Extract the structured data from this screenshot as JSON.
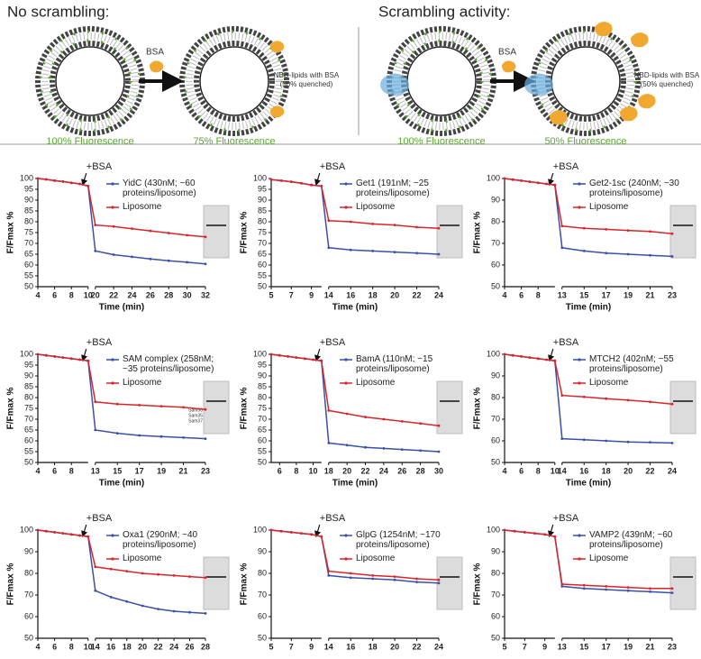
{
  "diagram": {
    "left_title": "No scrambling:",
    "right_title": "Scrambling activity:",
    "left": {
      "bsa": "BSA",
      "nbd_label": [
        "NBD-lipids with BSA",
        "(50% quenched)"
      ],
      "before_label": "100% Fluorescence",
      "after_label": "75% Fluorescence"
    },
    "right": {
      "bsa": "BSA",
      "nbd_label": [
        "NBD-lipids with BSA",
        "(50% quenched)"
      ],
      "before_label": "100% Fluorescence",
      "after_label": "50% Fluorescence"
    }
  },
  "chart_data": [
    {
      "type": "line",
      "annotation": "+BSA",
      "x_label": "Time (min)",
      "y_label": "F/Fmax %",
      "xlim": [
        [
          4,
          10
        ],
        [
          20,
          32
        ]
      ],
      "ylim": [
        50,
        100
      ],
      "xticks": [
        4,
        6,
        8,
        10,
        20,
        22,
        24,
        26,
        28,
        30,
        32
      ],
      "yticks": [
        50,
        55,
        60,
        65,
        70,
        75,
        80,
        85,
        90,
        95,
        100
      ],
      "x": [
        4,
        5,
        6,
        7,
        8,
        9,
        10,
        20,
        22,
        24,
        26,
        28,
        30,
        32
      ],
      "series": [
        {
          "name": "YidC (430nM; ~60 proteins/liposome)",
          "color": "#3b4fa8",
          "values": [
            100,
            99.6,
            99,
            98.6,
            98,
            97.5,
            96.5,
            66.5,
            64.8,
            63.8,
            62.8,
            62,
            61.3,
            60.5
          ]
        },
        {
          "name": "Liposome",
          "color": "#d7262b",
          "values": [
            100,
            99.6,
            99,
            98.6,
            98,
            97.5,
            96.5,
            78.5,
            77.8,
            76.8,
            75.8,
            74.8,
            73.8,
            73
          ]
        }
      ]
    },
    {
      "type": "line",
      "annotation": "+BSA",
      "x_label": "Time (min)",
      "y_label": "F/Fmax %",
      "xlim": [
        [
          5,
          10
        ],
        [
          14,
          24
        ]
      ],
      "ylim": [
        50,
        100
      ],
      "xticks": [
        5,
        7,
        9,
        14,
        16,
        18,
        20,
        22,
        24
      ],
      "yticks": [
        50,
        55,
        60,
        65,
        70,
        75,
        80,
        85,
        90,
        95,
        100
      ],
      "x": [
        5,
        6,
        7,
        8,
        9,
        10,
        14,
        16,
        18,
        20,
        22,
        24
      ],
      "series": [
        {
          "name": "Get1 (191nM; ~25 proteins/liposome)",
          "color": "#3b4fa8",
          "values": [
            99.5,
            99,
            98.5,
            97.8,
            97,
            96.5,
            68,
            67,
            66.5,
            66,
            65.5,
            65
          ]
        },
        {
          "name": "Liposome",
          "color": "#d7262b",
          "values": [
            99.5,
            99,
            98.5,
            97.8,
            97,
            96.5,
            80.5,
            80,
            79,
            78.5,
            77.5,
            77
          ]
        }
      ]
    },
    {
      "type": "line",
      "annotation": "+BSA",
      "x_label": "Time (min)",
      "y_label": "F/Fmax %",
      "xlim": [
        [
          4,
          10
        ],
        [
          13,
          23
        ]
      ],
      "ylim": [
        50,
        100
      ],
      "xticks": [
        4,
        6,
        8,
        13,
        15,
        17,
        19,
        21,
        23
      ],
      "yticks": [
        50,
        60,
        70,
        80,
        90,
        100
      ],
      "x": [
        4,
        5,
        6,
        7,
        8,
        9,
        10,
        13,
        15,
        17,
        19,
        21,
        23
      ],
      "series": [
        {
          "name": "Get2-1sc (240nM; ~30 proteins/liposome)",
          "color": "#3b4fa8",
          "values": [
            100,
            99.5,
            99,
            98.5,
            98,
            97.5,
            97,
            68,
            66.5,
            65.5,
            65,
            64.5,
            64
          ]
        },
        {
          "name": "Liposome",
          "color": "#d7262b",
          "values": [
            100,
            99.5,
            99,
            98.5,
            98,
            97.5,
            97,
            78,
            77,
            76.5,
            76,
            75.5,
            74.5
          ]
        }
      ]
    },
    {
      "type": "line",
      "annotation": "+BSA",
      "x_label": "Time (min)",
      "y_label": "F/Fmax %",
      "gel_labels": [
        "Sam50",
        "Sam35",
        "Sam37"
      ],
      "xlim": [
        [
          4,
          10
        ],
        [
          13,
          23
        ]
      ],
      "ylim": [
        50,
        100
      ],
      "xticks": [
        4,
        6,
        8,
        13,
        15,
        17,
        19,
        21,
        23
      ],
      "yticks": [
        50,
        55,
        60,
        65,
        70,
        75,
        80,
        85,
        90,
        95,
        100
      ],
      "x": [
        4,
        5,
        6,
        7,
        8,
        9,
        10,
        13,
        15,
        17,
        19,
        21,
        23
      ],
      "series": [
        {
          "name": "SAM complex (258nM; ~35 proteins/liposome)",
          "color": "#3b4fa8",
          "values": [
            100,
            99.5,
            99,
            98.5,
            98,
            97.5,
            97,
            65,
            63.5,
            62.5,
            62,
            61.5,
            61
          ]
        },
        {
          "name": "Liposome",
          "color": "#d7262b",
          "values": [
            100,
            99.5,
            99,
            98.5,
            98,
            97.5,
            97,
            78,
            77,
            76.5,
            76,
            75.5,
            74.5
          ]
        }
      ]
    },
    {
      "type": "line",
      "annotation": "+BSA",
      "x_label": "Time (min)",
      "y_label": "F/Fmax %",
      "xlim": [
        [
          5,
          11
        ],
        [
          18,
          30
        ]
      ],
      "ylim": [
        50,
        100
      ],
      "xticks": [
        6,
        8,
        10,
        18,
        20,
        22,
        24,
        26,
        28,
        30
      ],
      "yticks": [
        50,
        55,
        60,
        65,
        70,
        75,
        80,
        85,
        90,
        95,
        100
      ],
      "x": [
        5,
        6,
        7,
        8,
        9,
        10,
        11,
        18,
        20,
        22,
        24,
        26,
        28,
        30
      ],
      "series": [
        {
          "name": "BamA (110nM; ~15 proteins/liposome)",
          "color": "#3b4fa8",
          "values": [
            100,
            99.5,
            99,
            98.5,
            98,
            97.5,
            97,
            59,
            58,
            57,
            56.5,
            56,
            55.5,
            55
          ]
        },
        {
          "name": "Liposome",
          "color": "#d7262b",
          "values": [
            100,
            99.5,
            99,
            98.5,
            98,
            97.5,
            97,
            74,
            72.5,
            71,
            70,
            69,
            68,
            67
          ]
        }
      ]
    },
    {
      "type": "line",
      "annotation": "+BSA",
      "x_label": "Time (min)",
      "y_label": "F/Fmax %",
      "xlim": [
        [
          4,
          10
        ],
        [
          14,
          24
        ]
      ],
      "ylim": [
        50,
        100
      ],
      "xticks": [
        4,
        6,
        8,
        10,
        14,
        16,
        18,
        20,
        22,
        24
      ],
      "yticks": [
        50,
        60,
        70,
        80,
        90,
        100
      ],
      "x": [
        4,
        5,
        6,
        7,
        8,
        9,
        10,
        14,
        16,
        18,
        20,
        22,
        24
      ],
      "series": [
        {
          "name": "MTCH2 (402nM; ~55 proteins/liposome)",
          "color": "#3b4fa8",
          "values": [
            100,
            99.5,
            99,
            98.5,
            98,
            97.5,
            97,
            61,
            60.5,
            60,
            59.5,
            59.3,
            59
          ]
        },
        {
          "name": "Liposome",
          "color": "#d7262b",
          "values": [
            100,
            99.5,
            99,
            98.5,
            98,
            97.5,
            97,
            81,
            80.3,
            79.5,
            78.8,
            78,
            77
          ]
        }
      ]
    },
    {
      "type": "line",
      "annotation": "+BSA",
      "x_label": "Time (min)",
      "y_label": "F/Fmax %",
      "xlim": [
        [
          4,
          10
        ],
        [
          14,
          28
        ]
      ],
      "ylim": [
        50,
        100
      ],
      "xticks": [
        4,
        6,
        8,
        10,
        14,
        16,
        18,
        20,
        22,
        24,
        26,
        28
      ],
      "yticks": [
        50,
        60,
        70,
        80,
        90,
        100
      ],
      "x": [
        4,
        5,
        6,
        7,
        8,
        9,
        10,
        14,
        16,
        18,
        20,
        22,
        24,
        26,
        28
      ],
      "series": [
        {
          "name": "Oxa1 (290nM; ~40 proteins/liposome)",
          "color": "#3b4fa8",
          "values": [
            100,
            99.5,
            99,
            98.5,
            98,
            97.5,
            97,
            72,
            69,
            67,
            65,
            63.5,
            62.5,
            62,
            61.5
          ]
        },
        {
          "name": "Liposome",
          "color": "#d7262b",
          "values": [
            100,
            99.5,
            99,
            98.5,
            98,
            97.5,
            97,
            83,
            82,
            81,
            80,
            79.5,
            79,
            78.5,
            78
          ]
        }
      ]
    },
    {
      "type": "line",
      "annotation": "+BSA",
      "x_label": "Time (min)",
      "y_label": "F/Fmax %",
      "xlim": [
        [
          5,
          10
        ],
        [
          14,
          24
        ]
      ],
      "ylim": [
        50,
        100
      ],
      "xticks": [
        5,
        7,
        9,
        14,
        16,
        18,
        20,
        22,
        24
      ],
      "yticks": [
        50,
        60,
        70,
        80,
        90,
        100
      ],
      "x": [
        5,
        6,
        7,
        8,
        9,
        10,
        14,
        16,
        18,
        20,
        22,
        24
      ],
      "series": [
        {
          "name": "GlpG (1254nM; ~170 proteins/liposome)",
          "color": "#3b4fa8",
          "values": [
            100,
            99.5,
            99,
            98.5,
            98,
            97,
            79,
            78,
            77.5,
            77,
            76,
            75.5
          ]
        },
        {
          "name": "Liposome",
          "color": "#d7262b",
          "values": [
            100,
            99.5,
            99,
            98.5,
            98,
            97,
            81,
            80,
            79,
            78.5,
            77.5,
            77
          ]
        }
      ]
    },
    {
      "type": "line",
      "annotation": "+BSA",
      "x_label": "Time (min)",
      "y_label": "F/Fmax %",
      "xlim": [
        [
          5,
          10
        ],
        [
          13,
          23
        ]
      ],
      "ylim": [
        50,
        100
      ],
      "xticks": [
        5,
        7,
        9,
        13,
        15,
        17,
        19,
        21,
        23
      ],
      "yticks": [
        50,
        60,
        70,
        80,
        90,
        100
      ],
      "x": [
        5,
        6,
        7,
        8,
        9,
        10,
        13,
        15,
        17,
        19,
        21,
        23
      ],
      "series": [
        {
          "name": "VAMP2 (439nM; ~60 proteins/liposome)",
          "color": "#3b4fa8",
          "values": [
            100,
            99.5,
            99,
            98.5,
            98,
            97,
            74,
            73,
            72.5,
            72,
            71.5,
            71
          ]
        },
        {
          "name": "Liposome",
          "color": "#d7262b",
          "values": [
            100,
            99.5,
            99,
            98.5,
            98,
            97,
            75,
            74.5,
            74,
            73.5,
            73,
            73
          ]
        }
      ]
    }
  ]
}
